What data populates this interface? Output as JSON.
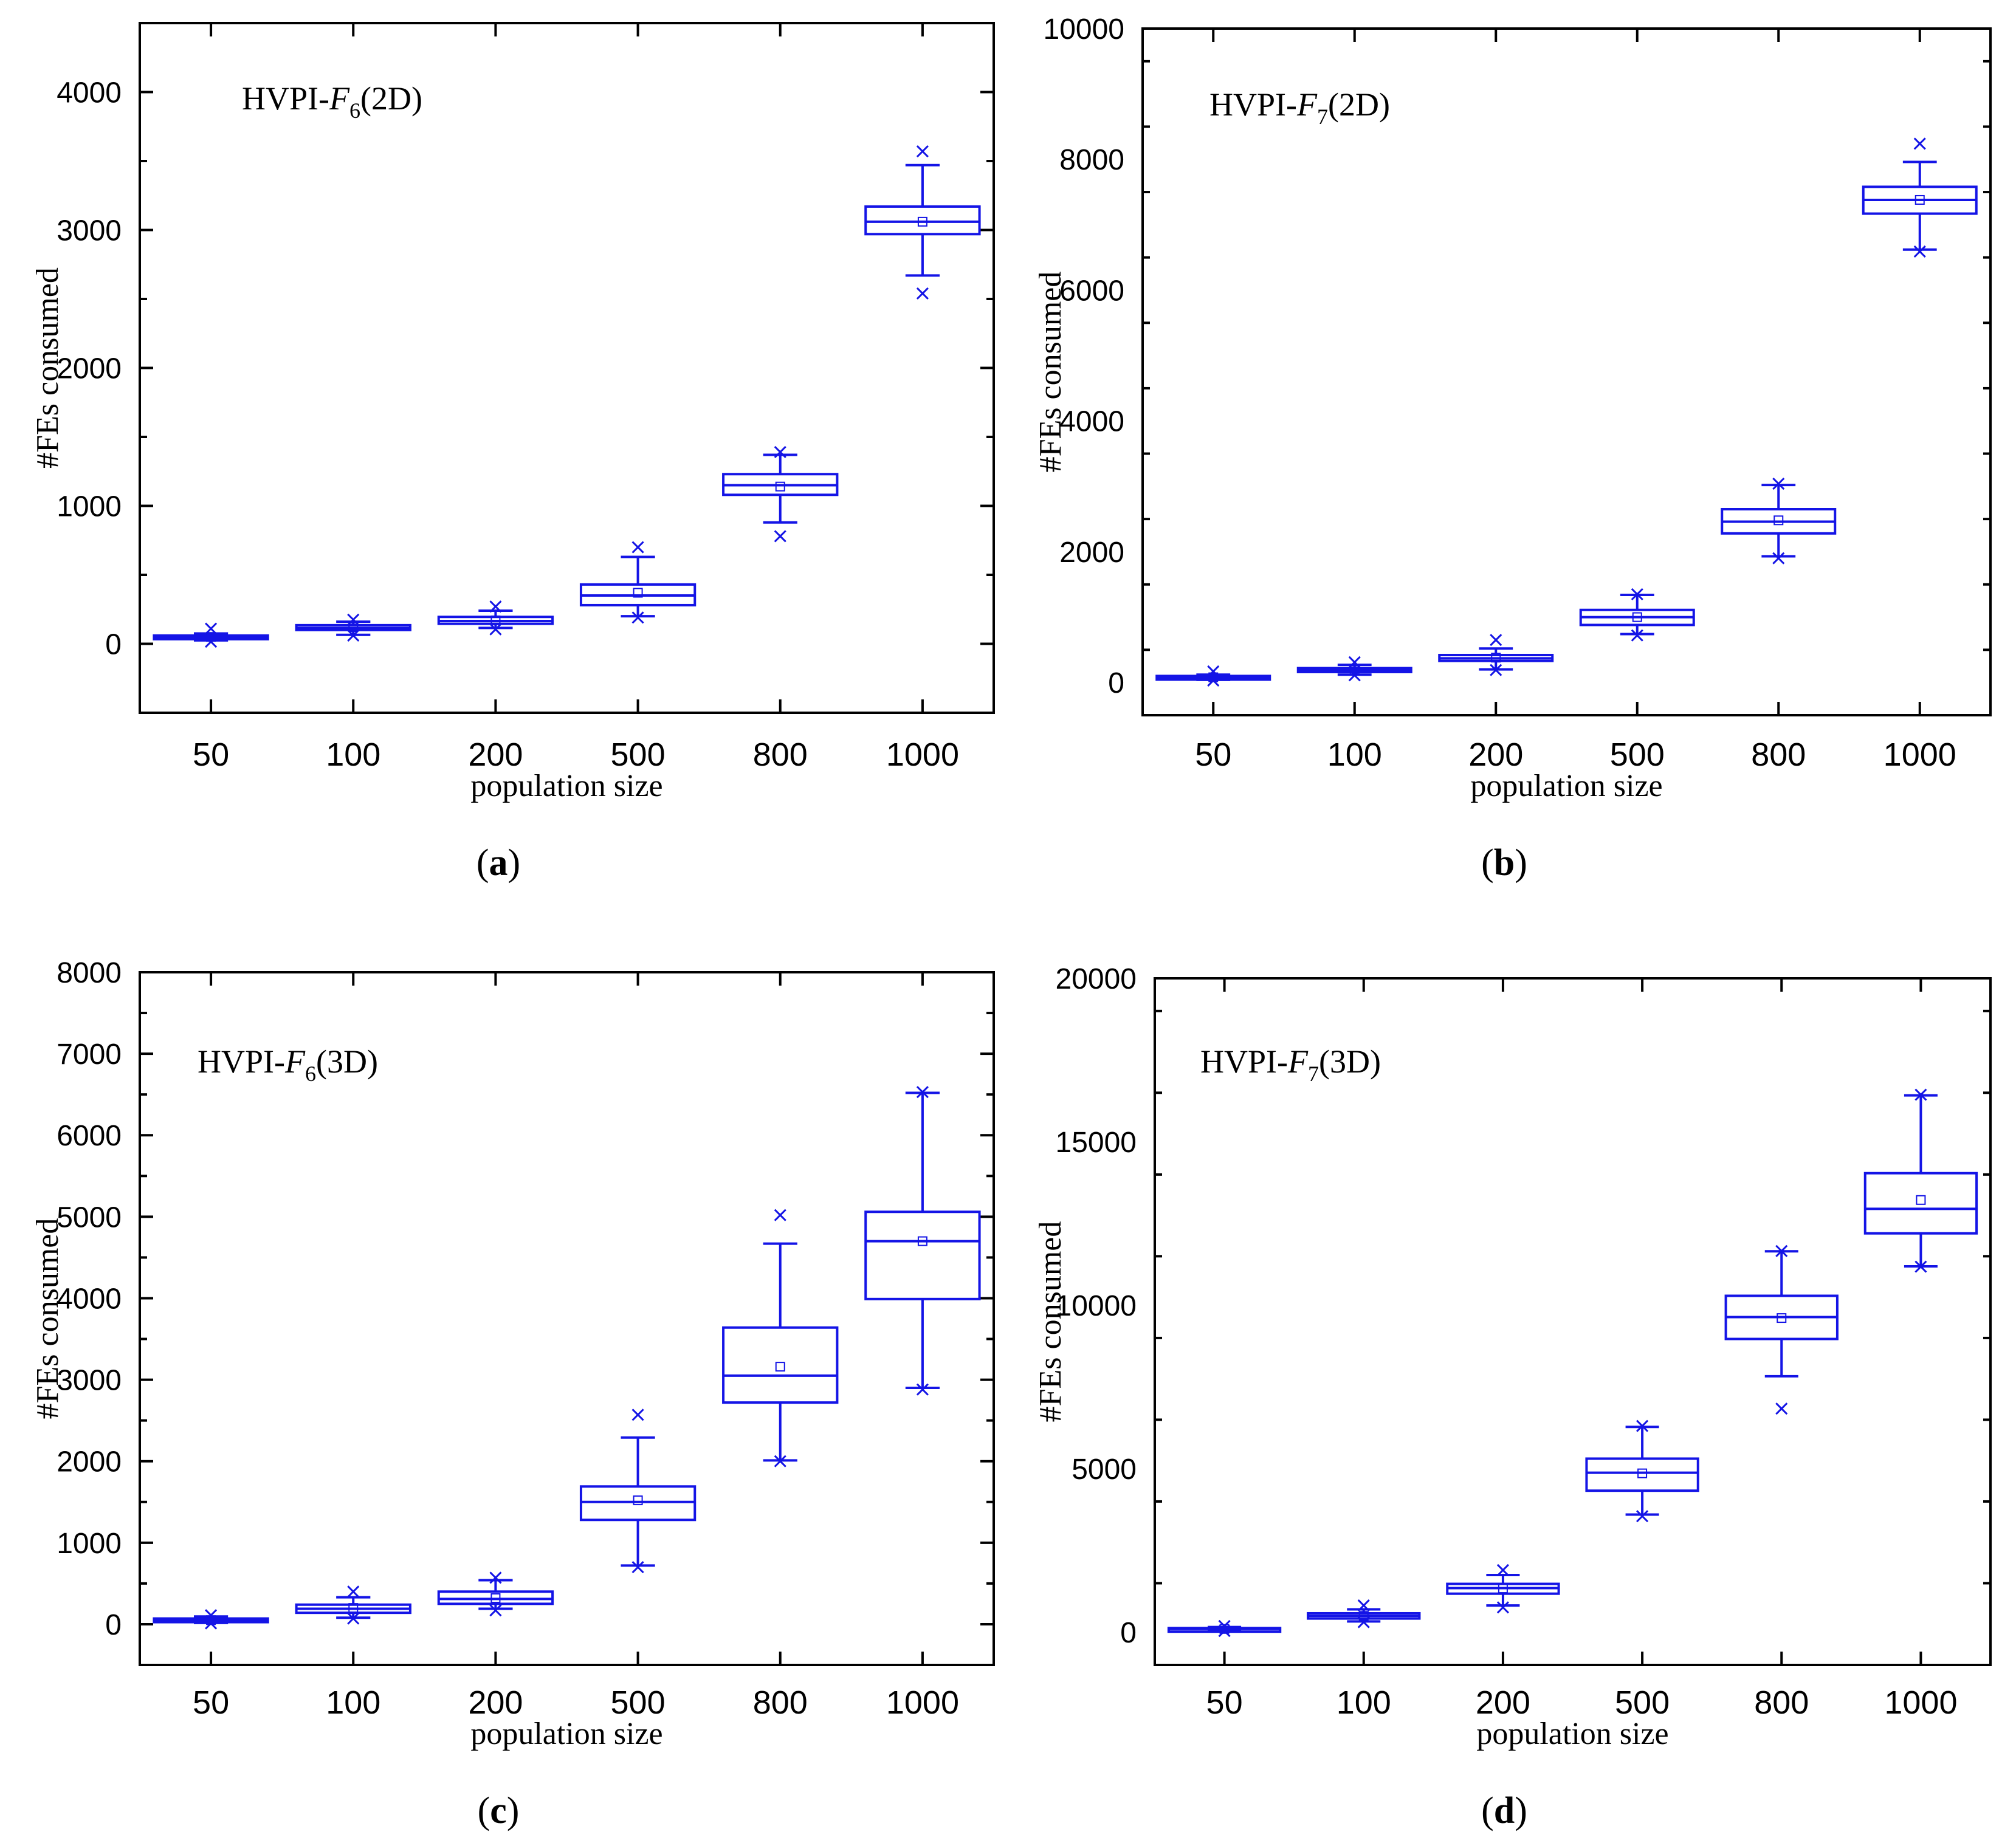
{
  "figure": {
    "colors": {
      "box": "#1414e6",
      "axis": "#000000",
      "background": "#ffffff"
    }
  },
  "chart_data": [
    {
      "type": "box",
      "panel_label": "(a)",
      "panel_letter": "a",
      "annotation": {
        "prefix": "HVPI-",
        "func": "F",
        "sub": "6",
        "suffix": "(2D)"
      },
      "xlabel": "population size",
      "ylabel": "#FEs consumed",
      "categories": [
        "50",
        "100",
        "200",
        "500",
        "800",
        "1000"
      ],
      "ylim": [
        -500,
        4500
      ],
      "yticks": [
        0,
        1000,
        2000,
        3000,
        4000
      ],
      "ytick_labels": [
        "0",
        "1000",
        "2000",
        "3000",
        "4000"
      ],
      "boxes": [
        {
          "q1": 40,
          "median": 50,
          "q3": 60,
          "mean": 50,
          "whisker_low": 25,
          "whisker_high": 75,
          "outliers": [
            15,
            110
          ],
          "box_half_width": 0.4
        },
        {
          "q1": 100,
          "median": 115,
          "q3": 135,
          "mean": 120,
          "whisker_low": 65,
          "whisker_high": 160,
          "outliers": [
            60,
            175
          ],
          "box_half_width": 0.4
        },
        {
          "q1": 145,
          "median": 165,
          "q3": 195,
          "mean": 170,
          "whisker_low": 115,
          "whisker_high": 240,
          "outliers": [
            105,
            270
          ],
          "box_half_width": 0.4
        },
        {
          "q1": 280,
          "median": 350,
          "q3": 430,
          "mean": 370,
          "whisker_low": 200,
          "whisker_high": 630,
          "outliers": [
            190,
            700
          ],
          "box_half_width": 0.4
        },
        {
          "q1": 1080,
          "median": 1150,
          "q3": 1230,
          "mean": 1140,
          "whisker_low": 880,
          "whisker_high": 1370,
          "outliers": [
            780,
            1390
          ],
          "box_half_width": 0.4
        },
        {
          "q1": 2970,
          "median": 3060,
          "q3": 3170,
          "mean": 3060,
          "whisker_low": 2670,
          "whisker_high": 3470,
          "outliers": [
            2540,
            3570
          ],
          "box_half_width": 0.4
        }
      ]
    },
    {
      "type": "box",
      "panel_label": "(b)",
      "panel_letter": "b",
      "annotation": {
        "prefix": "HVPI-",
        "func": "F",
        "sub": "7",
        "suffix": "(2D)"
      },
      "xlabel": "population size",
      "ylabel": "#FEs consumed",
      "categories": [
        "50",
        "100",
        "200",
        "500",
        "800",
        "1000"
      ],
      "ylim": [
        -500,
        10000
      ],
      "yticks": [
        0,
        2000,
        4000,
        6000,
        8000,
        10000
      ],
      "ytick_labels": [
        "0",
        "2000",
        "4000",
        "6000",
        "8000",
        "10000"
      ],
      "boxes": [
        {
          "q1": 60,
          "median": 80,
          "q3": 100,
          "mean": 80,
          "whisker_low": 40,
          "whisker_high": 120,
          "outliers": [
            30,
            170
          ],
          "box_half_width": 0.4
        },
        {
          "q1": 160,
          "median": 190,
          "q3": 220,
          "mean": 190,
          "whisker_low": 120,
          "whisker_high": 270,
          "outliers": [
            110,
            310
          ],
          "box_half_width": 0.4
        },
        {
          "q1": 330,
          "median": 370,
          "q3": 420,
          "mean": 380,
          "whisker_low": 200,
          "whisker_high": 520,
          "outliers": [
            190,
            650
          ],
          "box_half_width": 0.4
        },
        {
          "q1": 880,
          "median": 1000,
          "q3": 1110,
          "mean": 1000,
          "whisker_low": 740,
          "whisker_high": 1340,
          "outliers": [
            720,
            1350
          ],
          "box_half_width": 0.4
        },
        {
          "q1": 2280,
          "median": 2460,
          "q3": 2650,
          "mean": 2480,
          "whisker_low": 1930,
          "whisker_high": 3020,
          "outliers": [
            1900,
            3040
          ],
          "box_half_width": 0.4
        },
        {
          "q1": 7170,
          "median": 7380,
          "q3": 7580,
          "mean": 7380,
          "whisker_low": 6620,
          "whisker_high": 7960,
          "outliers": [
            6590,
            8240
          ],
          "box_half_width": 0.4
        }
      ]
    },
    {
      "type": "box",
      "panel_label": "(c)",
      "panel_letter": "c",
      "annotation": {
        "prefix": "HVPI-",
        "func": "F",
        "sub": "6",
        "suffix": "(3D)"
      },
      "xlabel": "population size",
      "ylabel": "#FEs consumed",
      "categories": [
        "50",
        "100",
        "200",
        "500",
        "800",
        "1000"
      ],
      "ylim": [
        -500,
        8000
      ],
      "yticks": [
        0,
        1000,
        2000,
        3000,
        4000,
        5000,
        6000,
        7000,
        8000
      ],
      "ytick_labels": [
        "0",
        "1000",
        "2000",
        "3000",
        "4000",
        "5000",
        "6000",
        "7000",
        "8000"
      ],
      "boxes": [
        {
          "q1": 30,
          "median": 50,
          "q3": 70,
          "mean": 50,
          "whisker_low": 15,
          "whisker_high": 95,
          "outliers": [
            10,
            110
          ],
          "box_half_width": 0.4
        },
        {
          "q1": 140,
          "median": 190,
          "q3": 240,
          "mean": 200,
          "whisker_low": 80,
          "whisker_high": 330,
          "outliers": [
            70,
            400
          ],
          "box_half_width": 0.4
        },
        {
          "q1": 250,
          "median": 310,
          "q3": 400,
          "mean": 320,
          "whisker_low": 190,
          "whisker_high": 540,
          "outliers": [
            170,
            570
          ],
          "box_half_width": 0.4
        },
        {
          "q1": 1280,
          "median": 1500,
          "q3": 1690,
          "mean": 1520,
          "whisker_low": 720,
          "whisker_high": 2290,
          "outliers": [
            700,
            2570
          ],
          "box_half_width": 0.4
        },
        {
          "q1": 2720,
          "median": 3050,
          "q3": 3640,
          "mean": 3160,
          "whisker_low": 2010,
          "whisker_high": 4670,
          "outliers": [
            2000,
            5020
          ],
          "box_half_width": 0.4
        },
        {
          "q1": 3990,
          "median": 4700,
          "q3": 5060,
          "mean": 4700,
          "whisker_low": 2900,
          "whisker_high": 6520,
          "outliers": [
            2880,
            6530
          ],
          "box_half_width": 0.4
        }
      ]
    },
    {
      "type": "box",
      "panel_label": "(d)",
      "panel_letter": "d",
      "annotation": {
        "prefix": "HVPI-",
        "func": "F",
        "sub": "7",
        "suffix": "(3D)"
      },
      "xlabel": "population size",
      "ylabel": "#FEs consumed",
      "categories": [
        "50",
        "100",
        "200",
        "500",
        "800",
        "1000"
      ],
      "ylim": [
        -1000,
        20000
      ],
      "yticks": [
        0,
        5000,
        10000,
        15000,
        20000
      ],
      "ytick_labels": [
        "0",
        "5000",
        "10000",
        "15000",
        "20000"
      ],
      "boxes": [
        {
          "q1": 80,
          "median": 100,
          "q3": 130,
          "mean": 100,
          "whisker_low": 50,
          "whisker_high": 160,
          "outliers": [
            40,
            190
          ],
          "box_half_width": 0.4
        },
        {
          "q1": 420,
          "median": 500,
          "q3": 580,
          "mean": 500,
          "whisker_low": 330,
          "whisker_high": 700,
          "outliers": [
            310,
            820
          ],
          "box_half_width": 0.4
        },
        {
          "q1": 1180,
          "median": 1350,
          "q3": 1480,
          "mean": 1340,
          "whisker_low": 820,
          "whisker_high": 1750,
          "outliers": [
            760,
            1900
          ],
          "box_half_width": 0.4
        },
        {
          "q1": 4330,
          "median": 4880,
          "q3": 5310,
          "mean": 4860,
          "whisker_low": 3600,
          "whisker_high": 6280,
          "outliers": [
            3550,
            6310
          ],
          "box_half_width": 0.4
        },
        {
          "q1": 8970,
          "median": 9640,
          "q3": 10290,
          "mean": 9610,
          "whisker_low": 7830,
          "whisker_high": 11650,
          "outliers": [
            6840,
            11660
          ],
          "box_half_width": 0.4
        },
        {
          "q1": 12200,
          "median": 12950,
          "q3": 14040,
          "mean": 13220,
          "whisker_low": 11190,
          "whisker_high": 16420,
          "outliers": [
            11180,
            16440
          ],
          "box_half_width": 0.4
        }
      ]
    }
  ]
}
